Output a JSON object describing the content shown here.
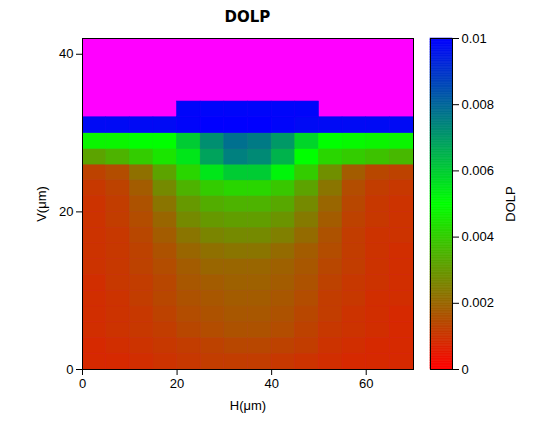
{
  "chart_data": {
    "type": "heatmap",
    "title": "DOLP",
    "x_label": "H(μm)",
    "y_label": "V(μm)",
    "x": [
      2.5,
      7.5,
      12.5,
      17.5,
      22.5,
      27.5,
      32.5,
      37.5,
      42.5,
      47.5,
      52.5,
      57.5,
      62.5,
      67.5
    ],
    "y": [
      1,
      3,
      5,
      7,
      9,
      11,
      13,
      15,
      17,
      19,
      21,
      23,
      25,
      27,
      29,
      31,
      33,
      35,
      37,
      39,
      41
    ],
    "cells": [
      [
        0.0008,
        0.0008,
        0.0009,
        0.001,
        0.0011,
        0.0012,
        0.0012,
        0.0012,
        0.0011,
        0.001,
        0.0009,
        0.0008,
        0.0008,
        0.0008
      ],
      [
        0.0008,
        0.0009,
        0.001,
        0.0011,
        0.0012,
        0.0013,
        0.0014,
        0.0014,
        0.0013,
        0.0012,
        0.001,
        0.0009,
        0.0008,
        0.0008
      ],
      [
        0.0009,
        0.001,
        0.0011,
        0.0012,
        0.0014,
        0.0015,
        0.0016,
        0.0016,
        0.0015,
        0.0013,
        0.0011,
        0.001,
        0.0009,
        0.0008
      ],
      [
        0.0009,
        0.001,
        0.0011,
        0.0013,
        0.0015,
        0.0016,
        0.0017,
        0.0017,
        0.0016,
        0.0014,
        0.0012,
        0.001,
        0.0009,
        0.0008
      ],
      [
        0.0009,
        0.001,
        0.0012,
        0.0014,
        0.0016,
        0.0017,
        0.0018,
        0.0018,
        0.0017,
        0.0015,
        0.0012,
        0.0011,
        0.0009,
        0.0009
      ],
      [
        0.0009,
        0.0011,
        0.0012,
        0.0014,
        0.0017,
        0.0018,
        0.0019,
        0.0019,
        0.0018,
        0.0016,
        0.0013,
        0.0011,
        0.001,
        0.0009
      ],
      [
        0.001,
        0.0011,
        0.0013,
        0.0015,
        0.0018,
        0.002,
        0.002,
        0.002,
        0.0019,
        0.0017,
        0.0014,
        0.0012,
        0.001,
        0.0009
      ],
      [
        0.001,
        0.0011,
        0.0013,
        0.0016,
        0.002,
        0.0022,
        0.0023,
        0.0023,
        0.0021,
        0.0018,
        0.0015,
        0.0012,
        0.001,
        0.0009
      ],
      [
        0.001,
        0.0011,
        0.0014,
        0.0018,
        0.0023,
        0.0026,
        0.0027,
        0.0027,
        0.0025,
        0.0021,
        0.0016,
        0.0012,
        0.001,
        0.001
      ],
      [
        0.001,
        0.0012,
        0.0015,
        0.002,
        0.0027,
        0.003,
        0.0031,
        0.0031,
        0.0029,
        0.0024,
        0.0018,
        0.0013,
        0.0011,
        0.001
      ],
      [
        0.001,
        0.0012,
        0.0016,
        0.0023,
        0.003,
        0.0034,
        0.0035,
        0.0035,
        0.0033,
        0.0027,
        0.002,
        0.0014,
        0.0011,
        0.001
      ],
      [
        0.0011,
        0.0013,
        0.0018,
        0.0027,
        0.0035,
        0.004,
        0.0042,
        0.0042,
        0.0039,
        0.0032,
        0.0023,
        0.0015,
        0.0012,
        0.0011
      ],
      [
        0.0013,
        0.0015,
        0.0022,
        0.0032,
        0.0042,
        0.0055,
        0.006,
        0.006,
        0.0052,
        0.004,
        0.0028,
        0.0018,
        0.0014,
        0.0013
      ],
      [
        0.0032,
        0.0035,
        0.004,
        0.0045,
        0.0055,
        0.0068,
        0.0075,
        0.0073,
        0.0065,
        0.005,
        0.0042,
        0.004,
        0.0038,
        0.0036
      ],
      [
        0.0048,
        0.0048,
        0.005,
        0.005,
        0.006,
        0.0072,
        0.0078,
        0.0076,
        0.007,
        0.0058,
        0.005,
        0.0049,
        0.0048,
        0.0048
      ],
      [
        0.0098,
        0.0098,
        0.0098,
        0.0098,
        0.0099,
        0.01,
        0.01,
        0.01,
        0.0099,
        0.0098,
        0.0098,
        0.0098,
        0.0098,
        0.0098
      ],
      [
        null,
        null,
        null,
        null,
        0.0099,
        0.0099,
        0.0099,
        0.0099,
        0.0099,
        0.0099,
        null,
        null,
        null,
        null
      ],
      [
        null,
        null,
        null,
        null,
        null,
        null,
        null,
        null,
        null,
        null,
        null,
        null,
        null,
        null
      ],
      [
        null,
        null,
        null,
        null,
        null,
        null,
        null,
        null,
        null,
        null,
        null,
        null,
        null,
        null
      ],
      [
        null,
        null,
        null,
        null,
        null,
        null,
        null,
        null,
        null,
        null,
        null,
        null,
        null,
        null
      ],
      [
        null,
        null,
        null,
        null,
        null,
        null,
        null,
        null,
        null,
        null,
        null,
        null,
        null,
        null
      ]
    ],
    "xlim": [
      0,
      70
    ],
    "ylim": [
      0,
      42
    ],
    "xticks": [
      0,
      20,
      40,
      60
    ],
    "yticks": [
      0,
      20,
      40
    ],
    "color": "#ff00ff",
    "colorbar": {
      "label": "DOLP",
      "range": [
        0,
        0.01
      ],
      "ticks": [
        0,
        0.002,
        0.004,
        0.006,
        0.008,
        0.01
      ],
      "colors": [
        "#ff0000",
        "#00ff00",
        "#0000ff"
      ]
    }
  }
}
